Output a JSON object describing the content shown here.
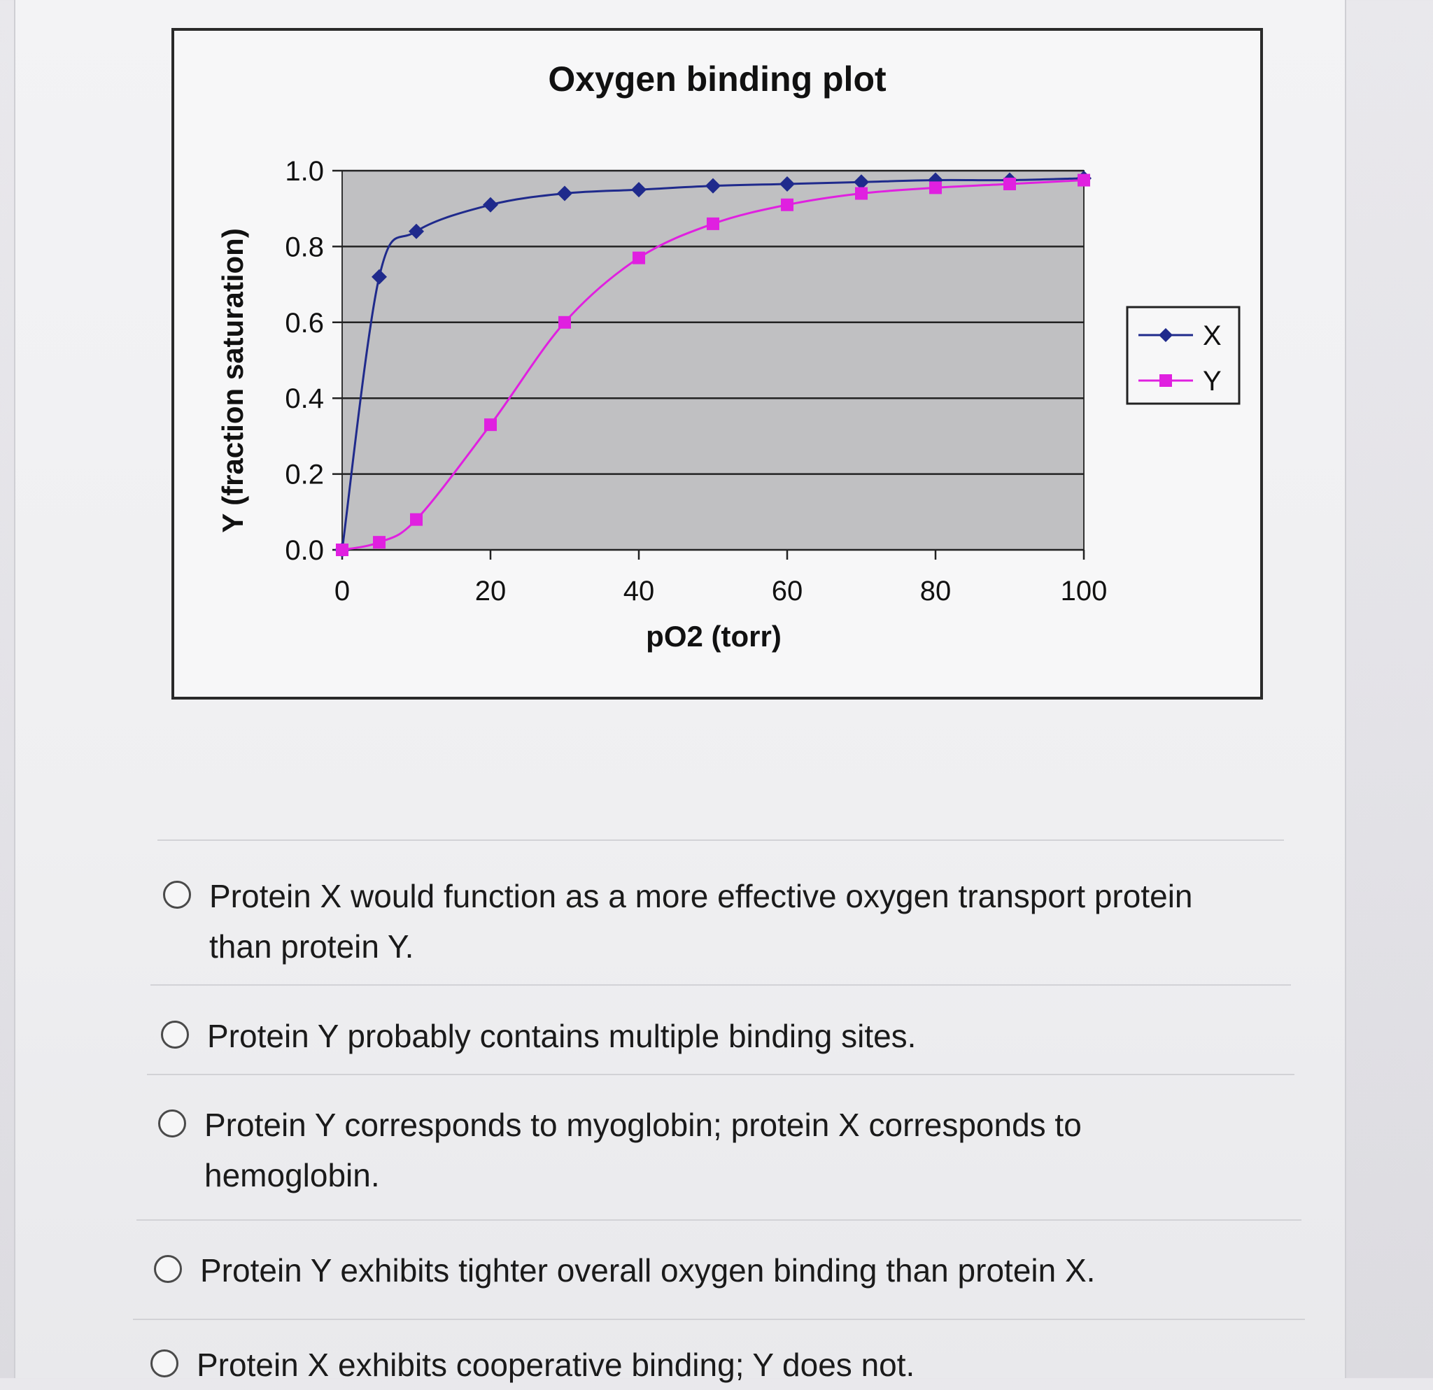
{
  "chart_data": {
    "type": "line",
    "title": "Oxygen binding plot",
    "xlabel": "pO2 (torr)",
    "ylabel": "Y (fraction saturation)",
    "xlim": [
      0,
      100
    ],
    "ylim": [
      0.0,
      1.0
    ],
    "x_ticks": [
      "0",
      "20",
      "40",
      "60",
      "80",
      "100"
    ],
    "y_ticks": [
      "0.0",
      "0.2",
      "0.4",
      "0.6",
      "0.8",
      "1.0"
    ],
    "grid": "horizontal",
    "legend_position": "right",
    "series": [
      {
        "name": "X",
        "color": "#1f2a8c",
        "marker": "diamond",
        "x": [
          0,
          5,
          10,
          20,
          30,
          40,
          50,
          60,
          70,
          80,
          90,
          100
        ],
        "y": [
          0.0,
          0.72,
          0.84,
          0.91,
          0.94,
          0.95,
          0.96,
          0.965,
          0.97,
          0.975,
          0.975,
          0.98
        ]
      },
      {
        "name": "Y",
        "color": "#e020e0",
        "marker": "square",
        "x": [
          0,
          5,
          10,
          20,
          30,
          40,
          50,
          60,
          70,
          80,
          90,
          100
        ],
        "y": [
          0.0,
          0.02,
          0.08,
          0.33,
          0.6,
          0.77,
          0.86,
          0.91,
          0.94,
          0.955,
          0.965,
          0.975
        ]
      }
    ]
  },
  "options": [
    "Protein X would function as a more effective oxygen transport protein than protein Y.",
    "Protein Y probably contains multiple binding sites.",
    "Protein Y corresponds to myoglobin; protein X corresponds to hemoglobin.",
    "Protein Y exhibits tighter overall oxygen binding than protein X.",
    "Protein X exhibits cooperative binding; Y does not."
  ]
}
